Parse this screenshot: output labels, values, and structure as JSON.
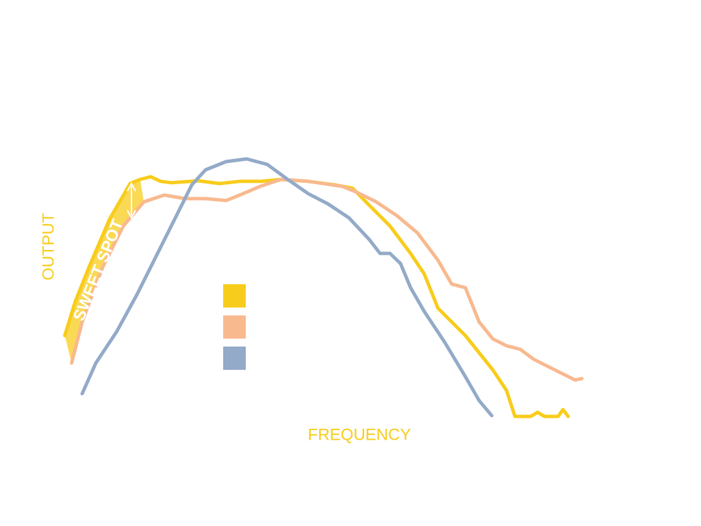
{
  "chart_data": {
    "type": "line",
    "x_label": "FREQUENCY",
    "y_label": "OUTPUT",
    "annotation": "SWEET SPOT",
    "xlim": [
      0,
      100
    ],
    "ylim": [
      0,
      100
    ],
    "series": [
      {
        "color": "#f8cc1b",
        "x": [
          0.6,
          2.6,
          5.2,
          9.1,
          13.0,
          14.9,
          16.9,
          18.8,
          20.8,
          26.0,
          29.9,
          33.8,
          37.7,
          41.6,
          46.8,
          51.9,
          55.2,
          58.4,
          62.3,
          66.2,
          68.8,
          71.4,
          76.6,
          81.8,
          84.4,
          86.0,
          89.0,
          90.3,
          91.6,
          94.2,
          95.1,
          96.1
        ],
        "values": [
          32.5,
          45,
          57.5,
          75,
          88,
          89.5,
          90.5,
          88.8,
          88.3,
          89,
          88,
          88.8,
          88.8,
          89.5,
          88.8,
          87.5,
          86.3,
          80,
          72.5,
          62.5,
          55,
          42.5,
          32.5,
          20,
          12.5,
          3,
          3,
          4.5,
          3,
          3,
          5.5,
          3
        ]
      },
      {
        "color": "#f8b98f",
        "x": [
          1.9,
          3.9,
          7.8,
          11.7,
          15.6,
          19.5,
          23.4,
          27.3,
          31.2,
          33.8,
          37.7,
          41.6,
          46.8,
          53.2,
          55.8,
          59.7,
          63.6,
          67.5,
          71.4,
          74.0,
          76.6,
          79.2,
          81.8,
          84.4,
          87.0,
          89.6,
          92.2,
          94.8,
          97.4,
          98.7
        ],
        "values": [
          22.5,
          37.5,
          57.5,
          72.5,
          81.3,
          83.8,
          82.5,
          82.5,
          81.8,
          83.8,
          87,
          89.5,
          88.8,
          87,
          85,
          81.3,
          76.3,
          70,
          60,
          51.3,
          50,
          37.5,
          31.3,
          28.8,
          27.5,
          23.8,
          21.3,
          18.8,
          16.3,
          16.8
        ]
      },
      {
        "color": "#93aac8",
        "x": [
          3.9,
          6.5,
          10.4,
          14.3,
          18.2,
          22.1,
          24.7,
          27.3,
          31.2,
          35.1,
          39.0,
          42.9,
          46.8,
          50.6,
          54.5,
          58.4,
          60.4,
          62.3,
          64.3,
          66.2,
          68.8,
          72.7,
          76.6,
          79.2,
          81.6
        ],
        "values": [
          11.3,
          22.5,
          33.8,
          47.5,
          62.5,
          77.5,
          87.5,
          93,
          96,
          97,
          95,
          89.5,
          84.3,
          80.5,
          75.5,
          67.5,
          62.5,
          62.5,
          58.8,
          50,
          41.3,
          30,
          17.5,
          8.8,
          3.3
        ]
      }
    ]
  }
}
